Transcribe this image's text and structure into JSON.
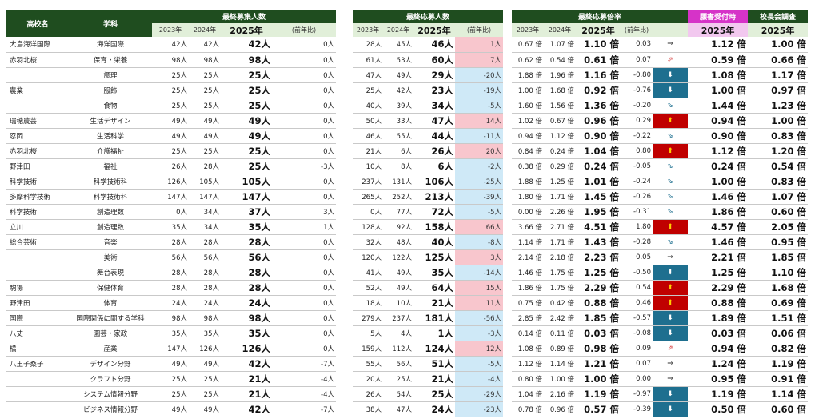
{
  "t1": {
    "school_header": "高校名",
    "dept_header": "学科",
    "group_header": "最終募集人数",
    "y2023": "2023年",
    "y2024": "2024年",
    "y2025": "2025年",
    "diff": "(前年比)"
  },
  "t2": {
    "group_header": "最終応募人数",
    "y2023": "2023年",
    "y2024": "2024年",
    "y2025": "2025年",
    "diff": "(前年比)"
  },
  "t3": {
    "group_header": "最終応募倍率",
    "y2023": "2023年",
    "y2024": "2024年",
    "y2025": "2025年",
    "diff": "(前年比)",
    "app_header": "願書受付時",
    "app_year": "2025年",
    "survey_header": "校長会調査",
    "survey_year": "2025年"
  },
  "colors": {
    "header_dark_green": "#1f4d1f",
    "header_light_green": "#e1efd9",
    "pink_header": "#d633c8",
    "pink_sub": "#f2c8ef",
    "increase_fill": "#f8c6cd",
    "decrease_fill": "#cfe9f7",
    "big_up": "#c00000",
    "big_down": "#1e6f8f"
  },
  "rows": [
    {
      "school": "大島海洋国際",
      "dept": "海洋国際",
      "r23": "42人",
      "r24": "42人",
      "r25": "42人",
      "rd": "0人",
      "a23": "28人",
      "a24": "45人",
      "a25": "46人",
      "ad": "1人",
      "adt": "pos",
      "b23": "0.67 倍",
      "b24": "1.07 倍",
      "b25": "1.10 倍",
      "bd": "0.03",
      "arrow": "⇒",
      "at": "flat",
      "app": "1.12 倍",
      "survey": "1.00 倍"
    },
    {
      "school": "赤羽北桜",
      "dept": "保育・栄養",
      "r23": "98人",
      "r24": "98人",
      "r25": "98人",
      "rd": "0人",
      "a23": "61人",
      "a24": "53人",
      "a25": "60人",
      "ad": "7人",
      "adt": "pos",
      "b23": "0.62 倍",
      "b24": "0.54 倍",
      "b25": "0.61 倍",
      "bd": "0.07",
      "arrow": "⇗",
      "at": "sup",
      "app": "0.59 倍",
      "survey": "0.66 倍"
    },
    {
      "school": "",
      "dept": "調理",
      "r23": "25人",
      "r24": "25人",
      "r25": "25人",
      "rd": "0人",
      "a23": "47人",
      "a24": "49人",
      "a25": "29人",
      "ad": "-20人",
      "adt": "neg",
      "b23": "1.88 倍",
      "b24": "1.96 倍",
      "b25": "1.16 倍",
      "bd": "-0.80",
      "arrow": "⬇",
      "at": "down",
      "app": "1.08 倍",
      "survey": "1.17 倍"
    },
    {
      "school": "農業",
      "dept": "服飾",
      "r23": "25人",
      "r24": "25人",
      "r25": "25人",
      "rd": "0人",
      "a23": "25人",
      "a24": "42人",
      "a25": "23人",
      "ad": "-19人",
      "adt": "neg",
      "b23": "1.00 倍",
      "b24": "1.68 倍",
      "b25": "0.92 倍",
      "bd": "-0.76",
      "arrow": "⬇",
      "at": "down",
      "app": "1.00 倍",
      "survey": "0.97 倍"
    },
    {
      "school": "",
      "dept": "食物",
      "r23": "25人",
      "r24": "25人",
      "r25": "25人",
      "rd": "0人",
      "a23": "40人",
      "a24": "39人",
      "a25": "34人",
      "ad": "-5人",
      "adt": "neg",
      "b23": "1.60 倍",
      "b24": "1.56 倍",
      "b25": "1.36 倍",
      "bd": "-0.20",
      "arrow": "⇘",
      "at": "sdown",
      "app": "1.44 倍",
      "survey": "1.23 倍"
    },
    {
      "school": "瑞穂農芸",
      "dept": "生活デザイン",
      "r23": "49人",
      "r24": "49人",
      "r25": "49人",
      "rd": "0人",
      "a23": "50人",
      "a24": "33人",
      "a25": "47人",
      "ad": "14人",
      "adt": "pos",
      "b23": "1.02 倍",
      "b24": "0.67 倍",
      "b25": "0.96 倍",
      "bd": "0.29",
      "arrow": "⬆",
      "at": "up",
      "app": "0.94 倍",
      "survey": "1.00 倍"
    },
    {
      "school": "忍岡",
      "dept": "生活科学",
      "r23": "49人",
      "r24": "49人",
      "r25": "49人",
      "rd": "0人",
      "a23": "46人",
      "a24": "55人",
      "a25": "44人",
      "ad": "-11人",
      "adt": "neg",
      "b23": "0.94 倍",
      "b24": "1.12 倍",
      "b25": "0.90 倍",
      "bd": "-0.22",
      "arrow": "⇘",
      "at": "sdown",
      "app": "0.90 倍",
      "survey": "0.83 倍"
    },
    {
      "school": "赤羽北桜",
      "dept": "介護福祉",
      "r23": "25人",
      "r24": "25人",
      "r25": "25人",
      "rd": "0人",
      "a23": "21人",
      "a24": "6人",
      "a25": "26人",
      "ad": "20人",
      "adt": "pos",
      "b23": "0.84 倍",
      "b24": "0.24 倍",
      "b25": "1.04 倍",
      "bd": "0.80",
      "arrow": "⬆",
      "at": "up",
      "app": "1.12 倍",
      "survey": "1.20 倍"
    },
    {
      "school": "野津田",
      "dept": "福祉",
      "r23": "26人",
      "r24": "28人",
      "r25": "25人",
      "rd": "-3人",
      "a23": "10人",
      "a24": "8人",
      "a25": "6人",
      "ad": "-2人",
      "adt": "neg",
      "b23": "0.38 倍",
      "b24": "0.29 倍",
      "b25": "0.24 倍",
      "bd": "-0.05",
      "arrow": "⇘",
      "at": "sdown",
      "app": "0.24 倍",
      "survey": "0.54 倍"
    },
    {
      "school": "科学技術",
      "dept": "科学技術科",
      "r23": "126人",
      "r24": "105人",
      "r25": "105人",
      "rd": "0人",
      "a23": "237人",
      "a24": "131人",
      "a25": "106人",
      "ad": "-25人",
      "adt": "neg",
      "b23": "1.88 倍",
      "b24": "1.25 倍",
      "b25": "1.01 倍",
      "bd": "-0.24",
      "arrow": "⇘",
      "at": "sdown",
      "app": "1.00 倍",
      "survey": "0.83 倍"
    },
    {
      "school": "多摩科学技術",
      "dept": "科学技術科",
      "r23": "147人",
      "r24": "147人",
      "r25": "147人",
      "rd": "0人",
      "a23": "265人",
      "a24": "252人",
      "a25": "213人",
      "ad": "-39人",
      "adt": "neg",
      "b23": "1.80 倍",
      "b24": "1.71 倍",
      "b25": "1.45 倍",
      "bd": "-0.26",
      "arrow": "⇘",
      "at": "sdown",
      "app": "1.46 倍",
      "survey": "1.07 倍"
    },
    {
      "school": "科学技術",
      "dept": "創造理数",
      "r23": "0人",
      "r24": "34人",
      "r25": "37人",
      "rd": "3人",
      "a23": "0人",
      "a24": "77人",
      "a25": "72人",
      "ad": "-5人",
      "adt": "neg",
      "b23": "0.00 倍",
      "b24": "2.26 倍",
      "b25": "1.95 倍",
      "bd": "-0.31",
      "arrow": "⇘",
      "at": "sdown",
      "app": "1.86 倍",
      "survey": "0.60 倍"
    },
    {
      "school": "立川",
      "dept": "創造理数",
      "r23": "35人",
      "r24": "34人",
      "r25": "35人",
      "rd": "1人",
      "a23": "128人",
      "a24": "92人",
      "a25": "158人",
      "ad": "66人",
      "adt": "pos",
      "b23": "3.66 倍",
      "b24": "2.71 倍",
      "b25": "4.51 倍",
      "bd": "1.80",
      "arrow": "⬆",
      "at": "up",
      "app": "4.57 倍",
      "survey": "2.05 倍"
    },
    {
      "school": "総合芸術",
      "dept": "音楽",
      "r23": "28人",
      "r24": "28人",
      "r25": "28人",
      "rd": "0人",
      "a23": "32人",
      "a24": "48人",
      "a25": "40人",
      "ad": "-8人",
      "adt": "neg",
      "b23": "1.14 倍",
      "b24": "1.71 倍",
      "b25": "1.43 倍",
      "bd": "-0.28",
      "arrow": "⇘",
      "at": "sdown",
      "app": "1.46 倍",
      "survey": "0.95 倍"
    },
    {
      "school": "",
      "dept": "美術",
      "r23": "56人",
      "r24": "56人",
      "r25": "56人",
      "rd": "0人",
      "a23": "120人",
      "a24": "122人",
      "a25": "125人",
      "ad": "3人",
      "adt": "pos",
      "b23": "2.14 倍",
      "b24": "2.18 倍",
      "b25": "2.23 倍",
      "bd": "0.05",
      "arrow": "⇒",
      "at": "flat",
      "app": "2.21 倍",
      "survey": "1.85 倍"
    },
    {
      "school": "",
      "dept": "舞台表現",
      "r23": "28人",
      "r24": "28人",
      "r25": "28人",
      "rd": "0人",
      "a23": "41人",
      "a24": "49人",
      "a25": "35人",
      "ad": "-14人",
      "adt": "neg",
      "b23": "1.46 倍",
      "b24": "1.75 倍",
      "b25": "1.25 倍",
      "bd": "-0.50",
      "arrow": "⬇",
      "at": "down",
      "app": "1.25 倍",
      "survey": "1.10 倍"
    },
    {
      "school": "駒場",
      "dept": "保健体育",
      "r23": "28人",
      "r24": "28人",
      "r25": "28人",
      "rd": "0人",
      "a23": "52人",
      "a24": "49人",
      "a25": "64人",
      "ad": "15人",
      "adt": "pos",
      "b23": "1.86 倍",
      "b24": "1.75 倍",
      "b25": "2.29 倍",
      "bd": "0.54",
      "arrow": "⬆",
      "at": "up",
      "app": "2.29 倍",
      "survey": "1.68 倍"
    },
    {
      "school": "野津田",
      "dept": "体育",
      "r23": "24人",
      "r24": "24人",
      "r25": "24人",
      "rd": "0人",
      "a23": "18人",
      "a24": "10人",
      "a25": "21人",
      "ad": "11人",
      "adt": "pos",
      "b23": "0.75 倍",
      "b24": "0.42 倍",
      "b25": "0.88 倍",
      "bd": "0.46",
      "arrow": "⬆",
      "at": "up",
      "app": "0.88 倍",
      "survey": "0.69 倍"
    },
    {
      "school": "国際",
      "dept": "国際関係に関する学科",
      "r23": "98人",
      "r24": "98人",
      "r25": "98人",
      "rd": "0人",
      "a23": "279人",
      "a24": "237人",
      "a25": "181人",
      "ad": "-56人",
      "adt": "neg",
      "b23": "2.85 倍",
      "b24": "2.42 倍",
      "b25": "1.85 倍",
      "bd": "-0.57",
      "arrow": "⬇",
      "at": "down",
      "app": "1.89 倍",
      "survey": "1.51 倍"
    },
    {
      "school": "八丈",
      "dept": "園芸・家政",
      "r23": "35人",
      "r24": "35人",
      "r25": "35人",
      "rd": "0人",
      "a23": "5人",
      "a24": "4人",
      "a25": "1人",
      "ad": "-3人",
      "adt": "neg",
      "b23": "0.14 倍",
      "b24": "0.11 倍",
      "b25": "0.03 倍",
      "bd": "-0.08",
      "arrow": "⬇",
      "at": "down",
      "app": "0.03 倍",
      "survey": "0.06 倍"
    },
    {
      "school": "橘",
      "dept": "産業",
      "r23": "147人",
      "r24": "126人",
      "r25": "126人",
      "rd": "0人",
      "a23": "159人",
      "a24": "112人",
      "a25": "124人",
      "ad": "12人",
      "adt": "pos",
      "b23": "1.08 倍",
      "b24": "0.89 倍",
      "b25": "0.98 倍",
      "bd": "0.09",
      "arrow": "⇗",
      "at": "sup",
      "app": "0.94 倍",
      "survey": "0.82 倍"
    },
    {
      "school": "八王子桑子",
      "dept": "デザイン分野",
      "r23": "49人",
      "r24": "49人",
      "r25": "42人",
      "rd": "-7人",
      "a23": "55人",
      "a24": "56人",
      "a25": "51人",
      "ad": "-5人",
      "adt": "neg",
      "b23": "1.12 倍",
      "b24": "1.14 倍",
      "b25": "1.21 倍",
      "bd": "0.07",
      "arrow": "⇒",
      "at": "flat",
      "app": "1.24 倍",
      "survey": "1.19 倍"
    },
    {
      "school": "",
      "dept": "クラフト分野",
      "r23": "25人",
      "r24": "25人",
      "r25": "21人",
      "rd": "-4人",
      "a23": "20人",
      "a24": "25人",
      "a25": "21人",
      "ad": "-4人",
      "adt": "neg",
      "b23": "0.80 倍",
      "b24": "1.00 倍",
      "b25": "1.00 倍",
      "bd": "0.00",
      "arrow": "⇒",
      "at": "flat",
      "app": "0.95 倍",
      "survey": "0.91 倍"
    },
    {
      "school": "",
      "dept": "システム情報分野",
      "r23": "25人",
      "r24": "25人",
      "r25": "21人",
      "rd": "-4人",
      "a23": "26人",
      "a24": "54人",
      "a25": "25人",
      "ad": "-29人",
      "adt": "neg",
      "b23": "1.04 倍",
      "b24": "2.16 倍",
      "b25": "1.19 倍",
      "bd": "-0.97",
      "arrow": "⬇",
      "at": "down",
      "app": "1.19 倍",
      "survey": "1.14 倍"
    },
    {
      "school": "",
      "dept": "ビジネス情報分野",
      "r23": "49人",
      "r24": "49人",
      "r25": "42人",
      "rd": "-7人",
      "a23": "38人",
      "a24": "47人",
      "a25": "24人",
      "ad": "-23人",
      "adt": "neg",
      "b23": "0.78 倍",
      "b24": "0.96 倍",
      "b25": "0.57 倍",
      "bd": "-0.39",
      "arrow": "⬇",
      "at": "down",
      "app": "0.50 倍",
      "survey": "0.60 倍"
    }
  ]
}
